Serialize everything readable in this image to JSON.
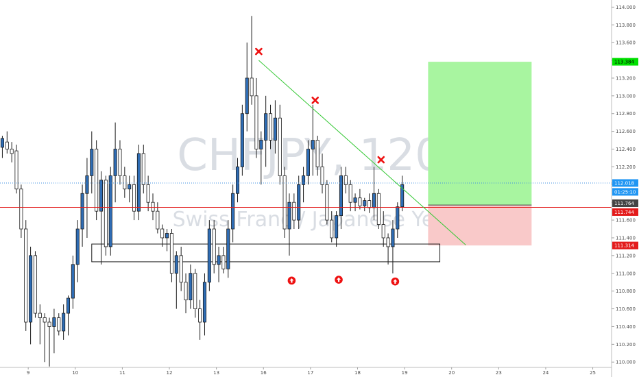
{
  "chart_data": {
    "type": "candlestick",
    "watermark": {
      "symbol": "CHFJPY, 120",
      "description": "Swiss Franc / Japanese Yen"
    },
    "y_axis": {
      "range": [
        109.94,
        114.08
      ],
      "ticks": [
        110.0,
        110.2,
        110.4,
        110.6,
        110.8,
        111.0,
        111.2,
        111.4,
        111.6,
        111.8,
        112.0,
        112.2,
        112.4,
        112.6,
        112.8,
        113.0,
        113.2,
        113.4,
        113.6,
        113.8,
        114.0
      ],
      "tick_labels": [
        "110.000",
        "110.200",
        "110.400",
        "110.600",
        "110.800",
        "111.000",
        "111.200",
        "111.400",
        "111.600",
        "111.800",
        "112.000",
        "112.200",
        "112.400",
        "112.600",
        "112.800",
        "113.000",
        "113.200",
        "113.400",
        "113.600",
        "113.800",
        "114.000"
      ]
    },
    "x_axis": {
      "range": [
        0,
        130
      ],
      "ticks": [
        {
          "x": 6,
          "label": "9"
        },
        {
          "x": 16,
          "label": "10"
        },
        {
          "x": 26,
          "label": "11"
        },
        {
          "x": 36,
          "label": "12"
        },
        {
          "x": 46,
          "label": "13"
        },
        {
          "x": 56,
          "label": "16"
        },
        {
          "x": 66,
          "label": "17"
        },
        {
          "x": 76,
          "label": "18"
        },
        {
          "x": 86,
          "label": "19"
        },
        {
          "x": 96,
          "label": "20"
        },
        {
          "x": 106,
          "label": "23"
        },
        {
          "x": 116,
          "label": "24"
        },
        {
          "x": 126,
          "label": "25"
        }
      ]
    },
    "candles": [
      {
        "o": 112.42,
        "h": 112.55,
        "l": 112.3,
        "c": 112.52
      },
      {
        "o": 112.48,
        "h": 112.6,
        "l": 112.35,
        "c": 112.4
      },
      {
        "o": 112.4,
        "h": 112.48,
        "l": 112.25,
        "c": 112.35
      },
      {
        "o": 112.38,
        "h": 112.45,
        "l": 111.9,
        "c": 111.95
      },
      {
        "o": 111.95,
        "h": 112.0,
        "l": 111.4,
        "c": 111.5
      },
      {
        "o": 111.5,
        "h": 111.6,
        "l": 110.35,
        "c": 110.45
      },
      {
        "o": 110.45,
        "h": 111.3,
        "l": 110.2,
        "c": 111.2
      },
      {
        "o": 111.2,
        "h": 111.25,
        "l": 110.5,
        "c": 110.55
      },
      {
        "o": 110.55,
        "h": 110.65,
        "l": 110.2,
        "c": 110.5
      },
      {
        "o": 110.5,
        "h": 110.55,
        "l": 110.0,
        "c": 110.45
      },
      {
        "o": 110.45,
        "h": 110.5,
        "l": 109.95,
        "c": 110.4
      },
      {
        "o": 110.4,
        "h": 110.6,
        "l": 110.1,
        "c": 110.5
      },
      {
        "o": 110.5,
        "h": 110.55,
        "l": 110.3,
        "c": 110.35
      },
      {
        "o": 110.35,
        "h": 110.65,
        "l": 110.25,
        "c": 110.55
      },
      {
        "o": 110.55,
        "h": 110.75,
        "l": 110.3,
        "c": 110.72
      },
      {
        "o": 110.72,
        "h": 111.2,
        "l": 110.6,
        "c": 111.1
      },
      {
        "o": 111.1,
        "h": 111.6,
        "l": 110.9,
        "c": 111.5
      },
      {
        "o": 111.5,
        "h": 112.0,
        "l": 111.3,
        "c": 111.9
      },
      {
        "o": 111.9,
        "h": 112.3,
        "l": 111.4,
        "c": 112.1
      },
      {
        "o": 112.1,
        "h": 112.6,
        "l": 111.9,
        "c": 112.4
      },
      {
        "o": 112.4,
        "h": 112.5,
        "l": 111.6,
        "c": 111.7
      },
      {
        "o": 111.7,
        "h": 112.15,
        "l": 111.1,
        "c": 112.05
      },
      {
        "o": 112.05,
        "h": 112.1,
        "l": 111.2,
        "c": 111.3
      },
      {
        "o": 111.3,
        "h": 112.2,
        "l": 111.2,
        "c": 112.1
      },
      {
        "o": 112.1,
        "h": 112.7,
        "l": 111.8,
        "c": 112.4
      },
      {
        "o": 112.4,
        "h": 112.5,
        "l": 112.0,
        "c": 112.1
      },
      {
        "o": 112.1,
        "h": 112.2,
        "l": 111.85,
        "c": 111.95
      },
      {
        "o": 111.95,
        "h": 112.1,
        "l": 111.8,
        "c": 112.0
      },
      {
        "o": 112.0,
        "h": 112.1,
        "l": 111.6,
        "c": 111.7
      },
      {
        "o": 111.7,
        "h": 112.45,
        "l": 111.6,
        "c": 112.35
      },
      {
        "o": 112.35,
        "h": 112.45,
        "l": 111.9,
        "c": 112.0
      },
      {
        "o": 112.0,
        "h": 112.1,
        "l": 111.7,
        "c": 111.8
      },
      {
        "o": 111.8,
        "h": 111.9,
        "l": 111.6,
        "c": 111.7
      },
      {
        "o": 111.7,
        "h": 111.8,
        "l": 111.45,
        "c": 111.5
      },
      {
        "o": 111.5,
        "h": 111.55,
        "l": 111.3,
        "c": 111.4
      },
      {
        "o": 111.4,
        "h": 111.5,
        "l": 111.25,
        "c": 111.45
      },
      {
        "o": 111.45,
        "h": 111.5,
        "l": 110.9,
        "c": 111.0
      },
      {
        "o": 111.0,
        "h": 111.25,
        "l": 110.6,
        "c": 111.2
      },
      {
        "o": 111.2,
        "h": 111.3,
        "l": 110.8,
        "c": 110.9
      },
      {
        "o": 110.9,
        "h": 111.0,
        "l": 110.55,
        "c": 110.7
      },
      {
        "o": 110.7,
        "h": 111.1,
        "l": 110.6,
        "c": 111.0
      },
      {
        "o": 111.0,
        "h": 111.05,
        "l": 110.5,
        "c": 110.6
      },
      {
        "o": 110.6,
        "h": 110.7,
        "l": 110.25,
        "c": 110.45
      },
      {
        "o": 110.45,
        "h": 111.0,
        "l": 110.3,
        "c": 110.9
      },
      {
        "o": 110.9,
        "h": 111.6,
        "l": 110.8,
        "c": 111.5
      },
      {
        "o": 111.5,
        "h": 111.6,
        "l": 111.0,
        "c": 111.1
      },
      {
        "o": 111.1,
        "h": 111.3,
        "l": 110.9,
        "c": 111.2
      },
      {
        "o": 111.2,
        "h": 111.3,
        "l": 111.0,
        "c": 111.05
      },
      {
        "o": 111.05,
        "h": 111.6,
        "l": 110.95,
        "c": 111.5
      },
      {
        "o": 111.5,
        "h": 112.0,
        "l": 111.35,
        "c": 111.9
      },
      {
        "o": 111.9,
        "h": 112.3,
        "l": 111.8,
        "c": 112.2
      },
      {
        "o": 112.2,
        "h": 112.9,
        "l": 112.1,
        "c": 112.8
      },
      {
        "o": 112.8,
        "h": 113.6,
        "l": 112.6,
        "c": 113.2
      },
      {
        "o": 113.2,
        "h": 113.9,
        "l": 112.9,
        "c": 113.0
      },
      {
        "o": 113.0,
        "h": 113.2,
        "l": 112.3,
        "c": 112.4
      },
      {
        "o": 112.4,
        "h": 112.6,
        "l": 112.0,
        "c": 112.5
      },
      {
        "o": 112.5,
        "h": 113.0,
        "l": 112.2,
        "c": 112.8
      },
      {
        "o": 112.8,
        "h": 112.9,
        "l": 112.4,
        "c": 112.5
      },
      {
        "o": 112.5,
        "h": 112.95,
        "l": 112.35,
        "c": 112.75
      },
      {
        "o": 112.75,
        "h": 112.9,
        "l": 112.0,
        "c": 112.1
      },
      {
        "o": 112.1,
        "h": 112.2,
        "l": 111.4,
        "c": 111.5
      },
      {
        "o": 111.5,
        "h": 111.9,
        "l": 111.2,
        "c": 111.8
      },
      {
        "o": 111.8,
        "h": 111.9,
        "l": 111.5,
        "c": 111.6
      },
      {
        "o": 111.6,
        "h": 112.1,
        "l": 111.5,
        "c": 112.0
      },
      {
        "o": 112.0,
        "h": 112.2,
        "l": 111.8,
        "c": 112.1
      },
      {
        "o": 112.1,
        "h": 112.5,
        "l": 112.0,
        "c": 112.4
      },
      {
        "o": 112.4,
        "h": 112.9,
        "l": 112.1,
        "c": 112.5
      },
      {
        "o": 112.5,
        "h": 112.55,
        "l": 112.1,
        "c": 112.2
      },
      {
        "o": 112.2,
        "h": 112.35,
        "l": 111.9,
        "c": 112.0
      },
      {
        "o": 112.0,
        "h": 112.05,
        "l": 111.55,
        "c": 111.6
      },
      {
        "o": 111.6,
        "h": 111.7,
        "l": 111.35,
        "c": 111.4
      },
      {
        "o": 111.4,
        "h": 111.7,
        "l": 111.3,
        "c": 111.65
      },
      {
        "o": 111.65,
        "h": 112.2,
        "l": 111.5,
        "c": 112.1
      },
      {
        "o": 112.1,
        "h": 112.2,
        "l": 111.9,
        "c": 112.0
      },
      {
        "o": 112.0,
        "h": 112.05,
        "l": 111.7,
        "c": 111.8
      },
      {
        "o": 111.8,
        "h": 111.9,
        "l": 111.7,
        "c": 111.85
      },
      {
        "o": 111.85,
        "h": 111.95,
        "l": 111.72,
        "c": 111.76
      },
      {
        "o": 111.76,
        "h": 111.85,
        "l": 111.7,
        "c": 111.82
      },
      {
        "o": 111.82,
        "h": 111.9,
        "l": 111.68,
        "c": 111.74
      },
      {
        "o": 111.74,
        "h": 112.2,
        "l": 111.6,
        "c": 111.9
      },
      {
        "o": 111.9,
        "h": 111.95,
        "l": 111.5,
        "c": 111.55
      },
      {
        "o": 111.55,
        "h": 111.7,
        "l": 111.3,
        "c": 111.4
      },
      {
        "o": 111.4,
        "h": 111.45,
        "l": 111.1,
        "c": 111.3
      },
      {
        "o": 111.3,
        "h": 111.6,
        "l": 111.0,
        "c": 111.5
      },
      {
        "o": 111.5,
        "h": 111.8,
        "l": 111.4,
        "c": 111.75
      },
      {
        "o": 111.75,
        "h": 112.1,
        "l": 111.7,
        "c": 112.0
      }
    ],
    "annotations": {
      "trendline": {
        "from": [
          55,
          113.4
        ],
        "to": [
          99,
          111.32
        ]
      },
      "lower_highs_x": [
        {
          "x": 55,
          "y": 113.5
        },
        {
          "x": 67,
          "y": 112.95
        },
        {
          "x": 81,
          "y": 112.28
        }
      ],
      "support_zone": {
        "x0": 19.5,
        "x1": 93.5,
        "y_low": 111.13,
        "y_high": 111.33
      },
      "support_touches": [
        {
          "x": 62,
          "y": 110.98
        },
        {
          "x": 72,
          "y": 110.99
        },
        {
          "x": 84,
          "y": 110.97
        }
      ],
      "position": {
        "x0": 91,
        "x1": 113,
        "entry": 111.77,
        "target": 113.384,
        "stop": 111.314
      }
    },
    "levels": {
      "last": 112.018,
      "position_line": 111.764,
      "red_line": 111.744
    },
    "price_badges": [
      {
        "label": "113.384",
        "value": 113.384,
        "bg": "#00e000",
        "fg": "#000000"
      },
      {
        "label": "112.018",
        "value": 112.018,
        "bg": "#2196f3",
        "fg": "#ffffff"
      },
      {
        "label": "01:25:10",
        "value": 111.918,
        "bg": "#2196f3",
        "fg": "#ffffff"
      },
      {
        "label": "111.764",
        "value": 111.79,
        "bg": "#444444",
        "fg": "#ffffff"
      },
      {
        "label": "111.744",
        "value": 111.69,
        "bg": "#e31b1b",
        "fg": "#ffffff"
      },
      {
        "label": "111.314",
        "value": 111.314,
        "bg": "#e31b1b",
        "fg": "#ffffff"
      }
    ],
    "colors": {
      "up_body": "#2f6db5",
      "down_body": "#ffffff",
      "outline": "#1a1a1a",
      "target_zone": "#a8f5a0",
      "stop_zone": "#f9c9c9",
      "trendline": "#34c834",
      "marker": "#ee1111",
      "blue_dotted": "#3d8fe0",
      "red_line": "#e31b1b"
    }
  }
}
